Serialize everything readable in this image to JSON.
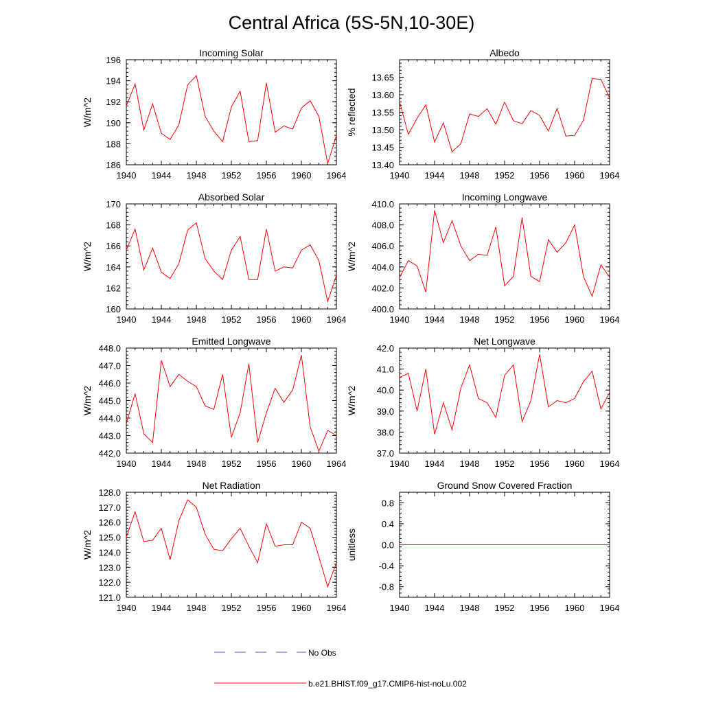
{
  "figure": {
    "title": "Central Africa (5S-5N,10-30E)",
    "line_color": "#ff0000",
    "obs_color": "#5555cc"
  },
  "legend": {
    "obs_label": "No Obs",
    "model_label": "b.e21.BHIST.f09_g17.CMIP6-hist-noLu.002"
  },
  "chart_data": [
    {
      "type": "line",
      "title": "Incoming Solar",
      "ylabel": "W/m^2",
      "xlim": [
        1940,
        1964
      ],
      "ylim": [
        186,
        196
      ],
      "x_ticks": [
        1940,
        1944,
        1948,
        1952,
        1956,
        1960,
        1964
      ],
      "y_ticks": [
        "186",
        "188",
        "190",
        "192",
        "194",
        "196"
      ],
      "y_tick_values": [
        186,
        188,
        190,
        192,
        194,
        196
      ],
      "x": [
        1940,
        1941,
        1942,
        1943,
        1944,
        1945,
        1946,
        1947,
        1948,
        1949,
        1950,
        1951,
        1952,
        1953,
        1954,
        1955,
        1956,
        1957,
        1958,
        1959,
        1960,
        1961,
        1962,
        1963,
        1964
      ],
      "values": [
        191.6,
        193.7,
        189.3,
        191.8,
        189.0,
        188.4,
        189.8,
        193.6,
        194.5,
        190.6,
        189.2,
        188.2,
        191.5,
        193.0,
        188.2,
        188.3,
        193.8,
        189.1,
        189.7,
        189.4,
        191.4,
        192.1,
        190.6,
        186.1,
        188.8
      ]
    },
    {
      "type": "line",
      "title": "Albedo",
      "ylabel": "% reflected",
      "xlim": [
        1940,
        1964
      ],
      "ylim": [
        13.4,
        13.7
      ],
      "x_ticks": [
        1940,
        1944,
        1948,
        1952,
        1956,
        1960,
        1964
      ],
      "y_ticks": [
        "13.40",
        "13.45",
        "13.50",
        "13.55",
        "13.60",
        "13.65"
      ],
      "y_tick_values": [
        13.4,
        13.45,
        13.5,
        13.55,
        13.6,
        13.65
      ],
      "x": [
        1940,
        1941,
        1942,
        1943,
        1944,
        1945,
        1946,
        1947,
        1948,
        1949,
        1950,
        1951,
        1952,
        1953,
        1954,
        1955,
        1956,
        1957,
        1958,
        1959,
        1960,
        1961,
        1962,
        1963,
        1964
      ],
      "values": [
        13.58,
        13.487,
        13.533,
        13.571,
        13.465,
        13.52,
        13.437,
        13.46,
        13.545,
        13.538,
        13.56,
        13.516,
        13.579,
        13.526,
        13.517,
        13.555,
        13.541,
        13.496,
        13.561,
        13.482,
        13.484,
        13.527,
        13.646,
        13.644,
        13.591
      ]
    },
    {
      "type": "line",
      "title": "Absorbed Solar",
      "ylabel": "W/m^2",
      "xlim": [
        1940,
        1964
      ],
      "ylim": [
        160,
        170
      ],
      "x_ticks": [
        1940,
        1944,
        1948,
        1952,
        1956,
        1960,
        1964
      ],
      "y_ticks": [
        "160",
        "162",
        "164",
        "166",
        "168",
        "170"
      ],
      "y_tick_values": [
        160,
        162,
        164,
        166,
        168,
        170
      ],
      "x": [
        1940,
        1941,
        1942,
        1943,
        1944,
        1945,
        1946,
        1947,
        1948,
        1949,
        1950,
        1951,
        1952,
        1953,
        1954,
        1955,
        1956,
        1957,
        1958,
        1959,
        1960,
        1961,
        1962,
        1963,
        1964
      ],
      "values": [
        165.6,
        167.6,
        163.7,
        165.8,
        163.5,
        162.9,
        164.3,
        167.5,
        168.2,
        164.8,
        163.6,
        162.8,
        165.6,
        166.9,
        162.8,
        162.8,
        167.6,
        163.6,
        164.0,
        163.9,
        165.6,
        166.1,
        164.6,
        160.7,
        163.2
      ]
    },
    {
      "type": "line",
      "title": "Incoming Longwave",
      "ylabel": "W/m^2",
      "xlim": [
        1940,
        1964
      ],
      "ylim": [
        400,
        410
      ],
      "x_ticks": [
        1940,
        1944,
        1948,
        1952,
        1956,
        1960,
        1964
      ],
      "y_ticks": [
        "400.0",
        "402.0",
        "404.0",
        "406.0",
        "408.0",
        "410.0"
      ],
      "y_tick_values": [
        400,
        402,
        404,
        406,
        408,
        410
      ],
      "x": [
        1940,
        1941,
        1942,
        1943,
        1944,
        1945,
        1946,
        1947,
        1948,
        1949,
        1950,
        1951,
        1952,
        1953,
        1954,
        1955,
        1956,
        1957,
        1958,
        1959,
        1960,
        1961,
        1962,
        1963,
        1964
      ],
      "values": [
        403.0,
        404.6,
        404.1,
        401.6,
        409.4,
        406.3,
        408.4,
        406.0,
        404.6,
        405.2,
        405.1,
        407.8,
        402.2,
        403.1,
        408.7,
        403.1,
        402.6,
        406.6,
        405.4,
        406.3,
        408.0,
        403.1,
        401.2,
        404.2,
        403.0
      ]
    },
    {
      "type": "line",
      "title": "Emitted Longwave",
      "ylabel": "W/m^2",
      "xlim": [
        1940,
        1964
      ],
      "ylim": [
        442,
        448
      ],
      "x_ticks": [
        1940,
        1944,
        1948,
        1952,
        1956,
        1960,
        1964
      ],
      "y_ticks": [
        "442.0",
        "443.0",
        "444.0",
        "445.0",
        "446.0",
        "447.0",
        "448.0"
      ],
      "y_tick_values": [
        442,
        443,
        444,
        445,
        446,
        447,
        448
      ],
      "x": [
        1940,
        1941,
        1942,
        1943,
        1944,
        1945,
        1946,
        1947,
        1948,
        1949,
        1950,
        1951,
        1952,
        1953,
        1954,
        1955,
        1956,
        1957,
        1958,
        1959,
        1960,
        1961,
        1962,
        1963,
        1964
      ],
      "values": [
        443.7,
        445.4,
        443.1,
        442.6,
        447.3,
        445.8,
        446.5,
        446.1,
        445.8,
        444.7,
        444.5,
        446.5,
        442.9,
        444.3,
        447.1,
        442.6,
        444.3,
        445.7,
        444.9,
        445.6,
        447.6,
        443.5,
        442.1,
        443.3,
        443.0
      ]
    },
    {
      "type": "line",
      "title": "Net Longwave",
      "ylabel": "W/m^2",
      "xlim": [
        1940,
        1964
      ],
      "ylim": [
        37,
        42
      ],
      "x_ticks": [
        1940,
        1944,
        1948,
        1952,
        1956,
        1960,
        1964
      ],
      "y_ticks": [
        "37.0",
        "38.0",
        "39.0",
        "40.0",
        "41.0",
        "42.0"
      ],
      "y_tick_values": [
        37,
        38,
        39,
        40,
        41,
        42
      ],
      "x": [
        1940,
        1941,
        1942,
        1943,
        1944,
        1945,
        1946,
        1947,
        1948,
        1949,
        1950,
        1951,
        1952,
        1953,
        1954,
        1955,
        1956,
        1957,
        1958,
        1959,
        1960,
        1961,
        1962,
        1963,
        1964
      ],
      "values": [
        40.6,
        40.8,
        39.0,
        41.0,
        37.9,
        39.4,
        38.1,
        40.1,
        41.2,
        39.6,
        39.4,
        38.7,
        40.7,
        41.2,
        38.5,
        39.5,
        41.7,
        39.2,
        39.5,
        39.4,
        39.6,
        40.4,
        40.9,
        39.1,
        39.9
      ]
    },
    {
      "type": "line",
      "title": "Net Radiation",
      "ylabel": "W/m^2",
      "xlim": [
        1940,
        1964
      ],
      "ylim": [
        121,
        128
      ],
      "x_ticks": [
        1940,
        1944,
        1948,
        1952,
        1956,
        1960,
        1964
      ],
      "y_ticks": [
        "121.0",
        "122.0",
        "123.0",
        "124.0",
        "125.0",
        "126.0",
        "127.0",
        "128.0"
      ],
      "y_tick_values": [
        121,
        122,
        123,
        124,
        125,
        126,
        127,
        128
      ],
      "x": [
        1940,
        1941,
        1942,
        1943,
        1944,
        1945,
        1946,
        1947,
        1948,
        1949,
        1950,
        1951,
        1952,
        1953,
        1954,
        1955,
        1956,
        1957,
        1958,
        1959,
        1960,
        1961,
        1962,
        1963,
        1964
      ],
      "values": [
        125.0,
        126.7,
        124.7,
        124.8,
        125.6,
        123.5,
        126.1,
        127.5,
        127.0,
        125.2,
        124.2,
        124.1,
        124.9,
        125.6,
        124.4,
        123.3,
        125.9,
        124.4,
        124.5,
        124.5,
        126.0,
        125.6,
        123.7,
        121.7,
        123.3
      ]
    },
    {
      "type": "line",
      "title": "Ground Snow Covered Fraction",
      "ylabel": "unitless",
      "xlim": [
        1940,
        1964
      ],
      "ylim": [
        -1.0,
        1.0
      ],
      "x_ticks": [
        1940,
        1944,
        1948,
        1952,
        1956,
        1960,
        1964
      ],
      "y_ticks": [
        "-0.8",
        "-0.4",
        "0.0",
        "0.4",
        "0.8"
      ],
      "y_tick_values": [
        -0.8,
        -0.4,
        0.0,
        0.4,
        0.8
      ],
      "x": [
        1940,
        1941,
        1942,
        1943,
        1944,
        1945,
        1946,
        1947,
        1948,
        1949,
        1950,
        1951,
        1952,
        1953,
        1954,
        1955,
        1956,
        1957,
        1958,
        1959,
        1960,
        1961,
        1962,
        1963,
        1964
      ],
      "values": [
        0,
        0,
        0,
        0,
        0,
        0,
        0,
        0,
        0,
        0,
        0,
        0,
        0,
        0,
        0,
        0,
        0,
        0,
        0,
        0,
        0,
        0,
        0,
        0,
        0
      ]
    }
  ]
}
